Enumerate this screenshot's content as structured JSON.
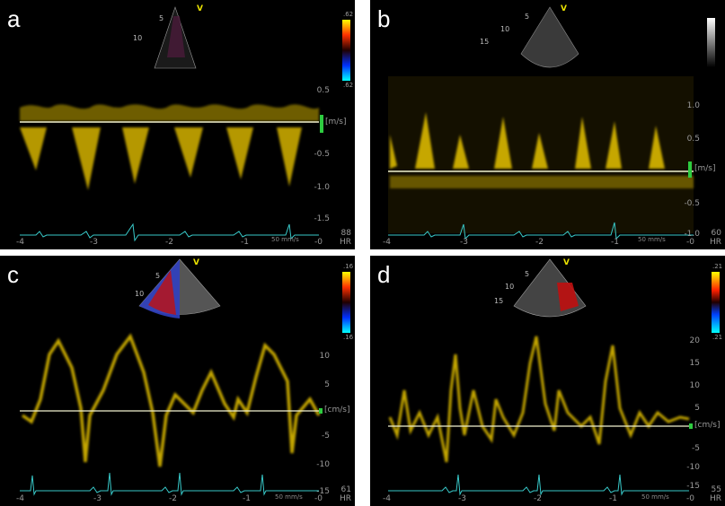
{
  "panels": [
    {
      "id": "a",
      "label": "a",
      "unit": "[m/s]",
      "hr_value": "88",
      "hr_label": "HR",
      "speed": "50 mm/s",
      "colorbar": "velocity",
      "cb_top": ".62",
      "cb_bottom": ".62",
      "y_ticks": [
        "0.5",
        "-0.5",
        "-1.0",
        "-1.5"
      ],
      "x_ticks": [
        "-4",
        "-3",
        "-2",
        "-1",
        "-0"
      ],
      "depth_marks": [
        "5",
        "10"
      ],
      "probe_label": "V"
    },
    {
      "id": "b",
      "label": "b",
      "unit": "[m/s]",
      "hr_value": "60",
      "hr_label": "HR",
      "speed": "50 mm/s",
      "colorbar": "gray",
      "cb_top": "",
      "cb_bottom": "",
      "y_ticks": [
        "1.0",
        "0.5",
        "-0.5",
        "-1.0"
      ],
      "x_ticks": [
        "-4",
        "-3",
        "-2",
        "-1",
        "-0"
      ],
      "depth_marks": [
        "5",
        "10",
        "15"
      ],
      "probe_label": "V"
    },
    {
      "id": "c",
      "label": "c",
      "unit": "[cm/s]",
      "hr_value": "61",
      "hr_label": "HR",
      "speed": "50 mm/s",
      "colorbar": "velocity",
      "cb_top": ".16",
      "cb_bottom": ".16",
      "y_ticks": [
        "10",
        "5",
        "-5",
        "-10",
        "-15"
      ],
      "x_ticks": [
        "-4",
        "-3",
        "-2",
        "-1",
        "-0"
      ],
      "depth_marks": [
        "5",
        "10"
      ],
      "probe_label": "V"
    },
    {
      "id": "d",
      "label": "d",
      "unit": "[cm/s]",
      "hr_value": "55",
      "hr_label": "HR",
      "speed": "50 mm/s",
      "colorbar": "tissue",
      "cb_top": ".21",
      "cb_bottom": ".21",
      "y_ticks": [
        "20",
        "15",
        "10",
        "5",
        "-5",
        "-10",
        "-15"
      ],
      "x_ticks": [
        "-4",
        "-3",
        "-2",
        "-1",
        "-0"
      ],
      "depth_marks": [
        "5",
        "10",
        "15"
      ],
      "probe_label": "V"
    }
  ],
  "colors": {
    "trace": "#e6c200",
    "baseline": "#f2f2d0",
    "ecg": "#38c9c9",
    "marker": "#2ecc40"
  }
}
